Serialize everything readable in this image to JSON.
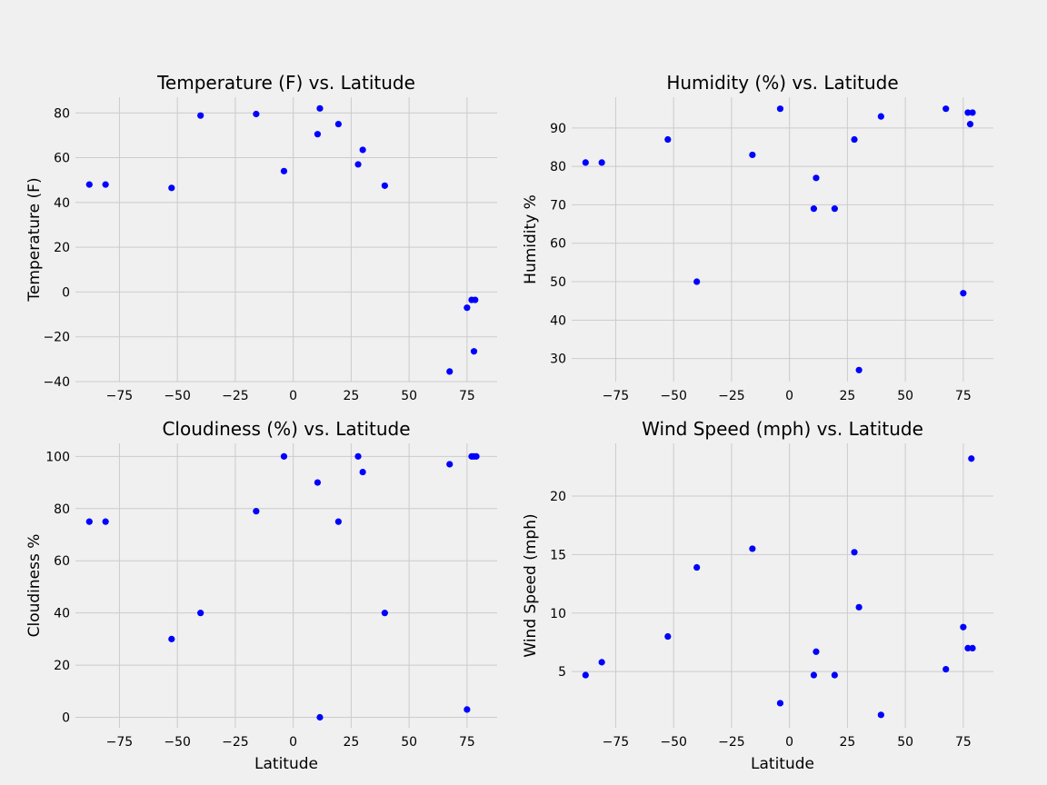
{
  "figure": {
    "background": "#f0f0f0",
    "plot_background": "#f0f0f0",
    "grid_color": "#cbcbcb",
    "marker_color": "#0000ff"
  },
  "chart_data": [
    {
      "type": "scatter",
      "title": "Temperature (F) vs. Latitude",
      "xlabel": "",
      "ylabel": "Temperature (F)",
      "xlim": [
        -94,
        88
      ],
      "ylim": [
        -40,
        87
      ],
      "xticks": [
        -75,
        -50,
        -25,
        0,
        25,
        50,
        75
      ],
      "yticks": [
        -40,
        -20,
        0,
        20,
        40,
        60,
        80
      ],
      "grid": true,
      "points": [
        {
          "x": -88,
          "y": 48
        },
        {
          "x": -81,
          "y": 48
        },
        {
          "x": -52.5,
          "y": 46.5
        },
        {
          "x": -40,
          "y": 78.8
        },
        {
          "x": -16,
          "y": 79.5
        },
        {
          "x": -4,
          "y": 54
        },
        {
          "x": 10.5,
          "y": 70.5
        },
        {
          "x": 11.5,
          "y": 82
        },
        {
          "x": 19.5,
          "y": 75
        },
        {
          "x": 28,
          "y": 57
        },
        {
          "x": 30,
          "y": 63.5
        },
        {
          "x": 39.5,
          "y": 47.5
        },
        {
          "x": 75,
          "y": -7
        },
        {
          "x": 77,
          "y": -3.5
        },
        {
          "x": 78.5,
          "y": -3.5
        },
        {
          "x": 78,
          "y": -26.5
        },
        {
          "x": 67.5,
          "y": -35.5
        }
      ]
    },
    {
      "type": "scatter",
      "title": "Humidity (%) vs. Latitude",
      "xlabel": "",
      "ylabel": "Humidity %",
      "xlim": [
        -94,
        88
      ],
      "ylim": [
        24,
        98
      ],
      "xticks": [
        -75,
        -50,
        -25,
        0,
        25,
        50,
        75
      ],
      "yticks": [
        30,
        40,
        50,
        60,
        70,
        80,
        90
      ],
      "grid": true,
      "points": [
        {
          "x": -88,
          "y": 81
        },
        {
          "x": -81,
          "y": 81
        },
        {
          "x": -52.5,
          "y": 87
        },
        {
          "x": -40,
          "y": 50
        },
        {
          "x": -16,
          "y": 83
        },
        {
          "x": -4,
          "y": 95
        },
        {
          "x": 10.5,
          "y": 69
        },
        {
          "x": 11.5,
          "y": 77
        },
        {
          "x": 19.5,
          "y": 69
        },
        {
          "x": 28,
          "y": 87
        },
        {
          "x": 30,
          "y": 27
        },
        {
          "x": 39.5,
          "y": 93
        },
        {
          "x": 67.5,
          "y": 95
        },
        {
          "x": 75,
          "y": 47
        },
        {
          "x": 77,
          "y": 94
        },
        {
          "x": 78,
          "y": 91
        },
        {
          "x": 79,
          "y": 94
        }
      ]
    },
    {
      "type": "scatter",
      "title": "Cloudiness (%) vs. Latitude",
      "xlabel": "Latitude",
      "ylabel": "Cloudiness %",
      "xlim": [
        -94,
        88
      ],
      "ylim": [
        -4,
        105
      ],
      "xticks": [
        -75,
        -50,
        -25,
        0,
        25,
        50,
        75
      ],
      "yticks": [
        0,
        20,
        40,
        60,
        80,
        100
      ],
      "grid": true,
      "points": [
        {
          "x": -88,
          "y": 75
        },
        {
          "x": -81,
          "y": 75
        },
        {
          "x": -52.5,
          "y": 30
        },
        {
          "x": -40,
          "y": 40
        },
        {
          "x": -16,
          "y": 79
        },
        {
          "x": -4,
          "y": 100
        },
        {
          "x": 10.5,
          "y": 90
        },
        {
          "x": 11.5,
          "y": 0
        },
        {
          "x": 19.5,
          "y": 75
        },
        {
          "x": 28,
          "y": 100
        },
        {
          "x": 30,
          "y": 94
        },
        {
          "x": 39.5,
          "y": 40
        },
        {
          "x": 67.5,
          "y": 97
        },
        {
          "x": 75,
          "y": 3
        },
        {
          "x": 77,
          "y": 100
        },
        {
          "x": 78,
          "y": 100
        },
        {
          "x": 79,
          "y": 100
        }
      ]
    },
    {
      "type": "scatter",
      "title": "Wind Speed (mph) vs. Latitude",
      "xlabel": "Latitude",
      "ylabel": "Wind Speed (mph)",
      "xlim": [
        -94,
        88
      ],
      "ylim": [
        0.2,
        24.5
      ],
      "xticks": [
        -75,
        -50,
        -25,
        0,
        25,
        50,
        75
      ],
      "yticks": [
        5,
        10,
        15,
        20
      ],
      "grid": true,
      "points": [
        {
          "x": -88,
          "y": 4.7
        },
        {
          "x": -81,
          "y": 5.8
        },
        {
          "x": -52.5,
          "y": 8
        },
        {
          "x": -40,
          "y": 13.9
        },
        {
          "x": -16,
          "y": 15.5
        },
        {
          "x": -4,
          "y": 2.3
        },
        {
          "x": 10.5,
          "y": 4.7
        },
        {
          "x": 11.5,
          "y": 6.7
        },
        {
          "x": 19.5,
          "y": 4.7
        },
        {
          "x": 28,
          "y": 15.2
        },
        {
          "x": 30,
          "y": 10.5
        },
        {
          "x": 39.5,
          "y": 1.3
        },
        {
          "x": 67.5,
          "y": 5.2
        },
        {
          "x": 75,
          "y": 8.8
        },
        {
          "x": 77,
          "y": 7
        },
        {
          "x": 78.5,
          "y": 23.2
        },
        {
          "x": 79,
          "y": 7
        }
      ]
    }
  ]
}
